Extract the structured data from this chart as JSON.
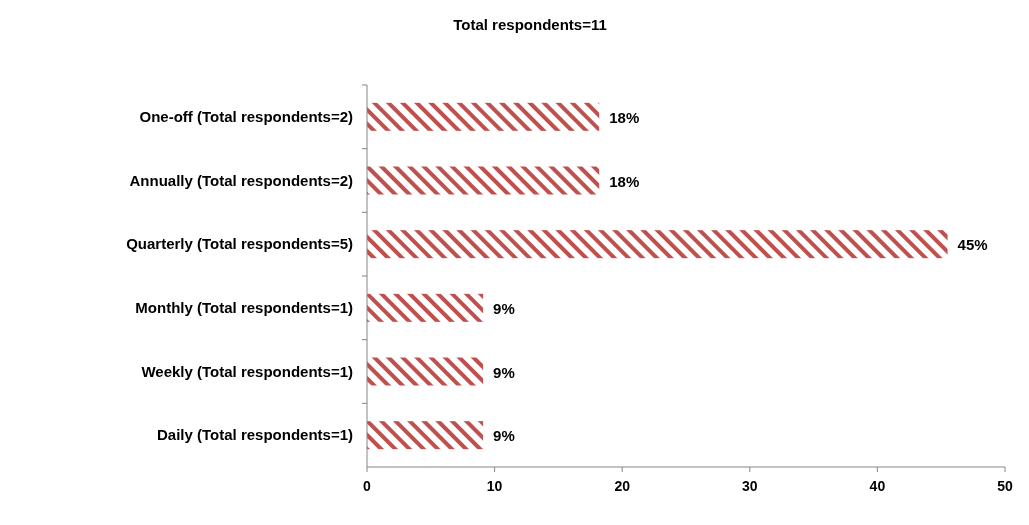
{
  "chart_data": {
    "type": "bar",
    "orientation": "horizontal",
    "title": "Total respondents=11",
    "categories": [
      "One-off (Total respondents=2)",
      "Annually (Total respondents=2)",
      "Quarterly (Total respondents=5)",
      "Monthly (Total respondents=1)",
      "Weekly (Total respondents=1)",
      "Daily (Total respondents=1)"
    ],
    "values": [
      18.2,
      18.2,
      45.5,
      9.1,
      9.1,
      9.1
    ],
    "value_labels": [
      "18%",
      "18%",
      "45%",
      "9%",
      "9%",
      "9%"
    ],
    "color": "#c0504d",
    "xlim": [
      0,
      50
    ],
    "xticks": [
      0,
      10,
      20,
      30,
      40,
      50
    ],
    "grid": false
  }
}
